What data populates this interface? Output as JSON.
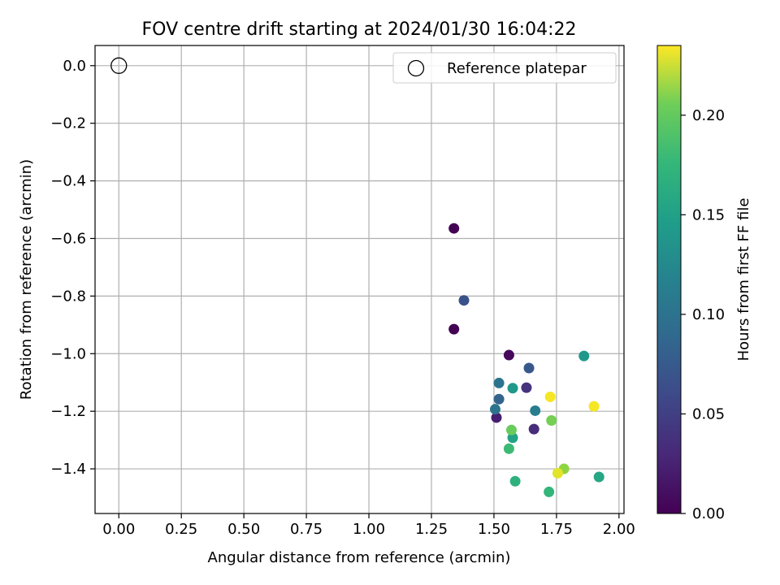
{
  "chart_data": {
    "type": "scatter",
    "title": "FOV centre drift starting at 2024/01/30 16:04:22",
    "xlabel": "Angular distance from reference (arcmin)",
    "ylabel": "Rotation from reference (arcmin)",
    "xlim": [
      -0.095,
      2.02
    ],
    "ylim": [
      -1.555,
      0.07
    ],
    "xticks": [
      0.0,
      0.25,
      0.5,
      0.75,
      1.0,
      1.25,
      1.5,
      1.75,
      2.0
    ],
    "xtick_labels": [
      "0.00",
      "0.25",
      "0.50",
      "0.75",
      "1.00",
      "1.25",
      "1.50",
      "1.75",
      "2.00"
    ],
    "yticks": [
      0.0,
      -0.2,
      -0.4,
      -0.6,
      -0.8,
      -1.0,
      -1.2,
      -1.4
    ],
    "ytick_labels": [
      "0.0",
      "−0.2",
      "−0.4",
      "−0.6",
      "−0.8",
      "−1.0",
      "−1.2",
      "−1.4"
    ],
    "grid": true,
    "colormap": "viridis",
    "colorbar": {
      "label": "Hours from first FF file",
      "range": [
        0.0,
        0.235
      ],
      "ticks": [
        0.0,
        0.05,
        0.1,
        0.15,
        0.2
      ],
      "tick_labels": [
        "0.00",
        "0.05",
        "0.10",
        "0.15",
        "0.20"
      ]
    },
    "reference": {
      "name": "Reference platepar",
      "x": 0.0,
      "y": 0.0
    },
    "legend": {
      "position": "top-right",
      "entries": [
        "Reference platepar"
      ]
    },
    "points": [
      {
        "x": 1.34,
        "y": -0.565,
        "c": 0.0
      },
      {
        "x": 1.34,
        "y": -0.915,
        "c": 0.0
      },
      {
        "x": 1.56,
        "y": -1.005,
        "c": 0.005
      },
      {
        "x": 1.51,
        "y": -1.222,
        "c": 0.02
      },
      {
        "x": 1.66,
        "y": -1.262,
        "c": 0.03
      },
      {
        "x": 1.63,
        "y": -1.118,
        "c": 0.035
      },
      {
        "x": 1.38,
        "y": -0.815,
        "c": 0.06
      },
      {
        "x": 1.64,
        "y": -1.05,
        "c": 0.065
      },
      {
        "x": 1.52,
        "y": -1.158,
        "c": 0.075
      },
      {
        "x": 1.52,
        "y": -1.102,
        "c": 0.09
      },
      {
        "x": 1.505,
        "y": -1.193,
        "c": 0.09
      },
      {
        "x": 1.665,
        "y": -1.198,
        "c": 0.1
      },
      {
        "x": 1.575,
        "y": -1.12,
        "c": 0.125
      },
      {
        "x": 1.86,
        "y": -1.008,
        "c": 0.125
      },
      {
        "x": 1.575,
        "y": -1.292,
        "c": 0.135
      },
      {
        "x": 1.92,
        "y": -1.428,
        "c": 0.14
      },
      {
        "x": 1.585,
        "y": -1.443,
        "c": 0.15
      },
      {
        "x": 1.72,
        "y": -1.48,
        "c": 0.155
      },
      {
        "x": 1.56,
        "y": -1.33,
        "c": 0.16
      },
      {
        "x": 1.57,
        "y": -1.265,
        "c": 0.18
      },
      {
        "x": 1.73,
        "y": -1.232,
        "c": 0.185
      },
      {
        "x": 1.78,
        "y": -1.4,
        "c": 0.195
      },
      {
        "x": 1.755,
        "y": -1.415,
        "c": 0.225
      },
      {
        "x": 1.725,
        "y": -1.15,
        "c": 0.232
      },
      {
        "x": 1.9,
        "y": -1.183,
        "c": 0.232
      }
    ]
  }
}
